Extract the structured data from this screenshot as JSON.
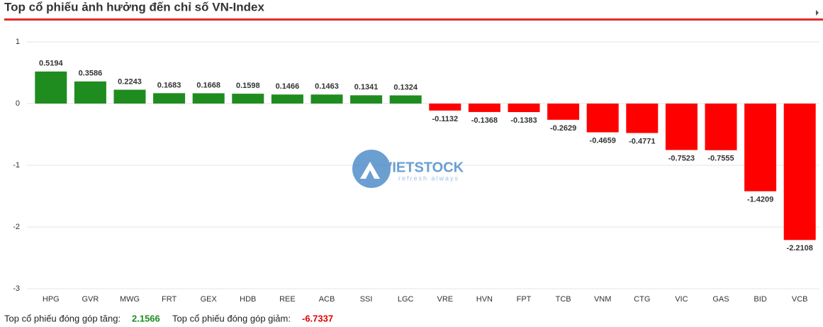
{
  "chart_data": {
    "type": "bar",
    "title": "Top cổ phiếu ảnh hưởng đến chỉ số VN-Index",
    "categories": [
      "HPG",
      "GVR",
      "MWG",
      "FRT",
      "GEX",
      "HDB",
      "REE",
      "ACB",
      "SSI",
      "LGC",
      "VRE",
      "HVN",
      "FPT",
      "TCB",
      "VNM",
      "CTG",
      "VIC",
      "GAS",
      "BID",
      "VCB"
    ],
    "values": [
      0.5194,
      0.3586,
      0.2243,
      0.1683,
      0.1668,
      0.1598,
      0.1466,
      0.1463,
      0.1341,
      0.1324,
      -0.1132,
      -0.1368,
      -0.1383,
      -0.2629,
      -0.4659,
      -0.4771,
      -0.7523,
      -0.7555,
      -1.4209,
      -2.2108
    ],
    "positive_color": "#1f8c1f",
    "negative_color": "#ff0000",
    "ylim": [
      -3,
      1
    ],
    "yticks": [
      1,
      0,
      -1,
      -2,
      -3
    ],
    "grid": true,
    "watermark": "VIETSTOCK",
    "watermark_subtitle": "refresh always"
  },
  "footer": {
    "up_label": "Top cổ phiếu đóng góp tăng:",
    "up_value": 2.1566,
    "down_label": "Top cổ phiếu đóng góp giảm:",
    "down_value": -6.7337
  }
}
